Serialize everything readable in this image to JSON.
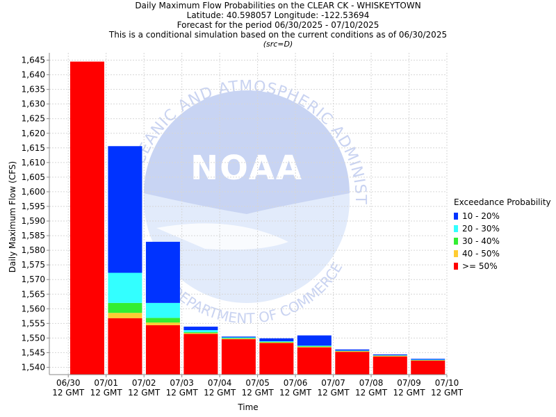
{
  "title_lines": [
    "Daily Maximum Flow Probabilities on the CLEAR CK - WHISKEYTOWN",
    "Latitude: 40.598057 Longitude: -122.53694",
    "Forecast for the period 06/30/2025 - 07/10/2025",
    "This is a conditional simulation based on the current conditions as of 06/30/2025"
  ],
  "src_note": "(src=D)",
  "watermark": {
    "logo_text": "NOAA",
    "ring_top": "NATIONAL OCEANIC AND ATMOSPHERIC ADMINISTRATION",
    "ring_bottom": "U.S. DEPARTMENT OF COMMERCE"
  },
  "legend": {
    "title": "Exceedance Probability",
    "items": [
      {
        "label": "10 - 20%",
        "color": "#0033ff"
      },
      {
        "label": "20 - 30%",
        "color": "#33ffff"
      },
      {
        "label": "30 - 40%",
        "color": "#33ee33"
      },
      {
        "label": "40 - 50%",
        "color": "#ffcc33"
      },
      {
        "label": ">= 50%",
        "color": "#ff0000"
      }
    ]
  },
  "chart_data": {
    "type": "bar",
    "stacked": true,
    "xlabel": "Time",
    "ylabel": "Daily Maximum Flow (CFS)",
    "ylim": [
      1537.5,
      1647.5
    ],
    "yticks": [
      1540,
      1545,
      1550,
      1555,
      1560,
      1565,
      1570,
      1575,
      1580,
      1585,
      1590,
      1595,
      1600,
      1605,
      1610,
      1615,
      1620,
      1625,
      1630,
      1635,
      1640,
      1645
    ],
    "grid": true,
    "legend_position": "right",
    "x_tick_labels": [
      [
        "06/30",
        "12 GMT"
      ],
      [
        "07/01",
        "12 GMT"
      ],
      [
        "07/02",
        "12 GMT"
      ],
      [
        "07/03",
        "12 GMT"
      ],
      [
        "07/04",
        "12 GMT"
      ],
      [
        "07/05",
        "12 GMT"
      ],
      [
        "07/06",
        "12 GMT"
      ],
      [
        "07/07",
        "12 GMT"
      ],
      [
        "07/08",
        "12 GMT"
      ],
      [
        "07/09",
        "12 GMT"
      ],
      [
        "07/10",
        "12 GMT"
      ]
    ],
    "bars": [
      {
        "date": "07/01",
        "segments": [
          1644.5
        ]
      },
      {
        "date": "07/02",
        "segments": [
          1556.8,
          1558.6,
          1562.0,
          1572.3,
          1615.6
        ]
      },
      {
        "date": "07/03",
        "segments": [
          1554.4,
          1555.3,
          1556.9,
          1562.0,
          1582.9
        ]
      },
      {
        "date": "07/04",
        "segments": [
          1551.4,
          1551.7,
          1552.0,
          1552.7,
          1553.9
        ]
      },
      {
        "date": "07/05",
        "segments": [
          1549.6,
          1549.8,
          1550.0,
          1550.2,
          1550.5
        ]
      },
      {
        "date": "07/06",
        "segments": [
          1548.3,
          1548.5,
          1548.7,
          1548.9,
          1549.9
        ]
      },
      {
        "date": "07/07",
        "segments": [
          1546.8,
          1547.0,
          1547.2,
          1547.4,
          1550.9
        ]
      },
      {
        "date": "07/08",
        "segments": [
          1545.3,
          1545.5,
          1545.6,
          1545.7,
          1546.1
        ]
      },
      {
        "date": "07/09",
        "segments": [
          1543.7,
          1543.9,
          1544.0,
          1544.1,
          1544.4
        ]
      },
      {
        "date": "07/10",
        "segments": [
          1542.3,
          1542.4,
          1542.5,
          1542.6,
          1542.9
        ]
      }
    ],
    "segment_colors": [
      "#ff0000",
      "#ffcc33",
      "#33ee33",
      "#33ffff",
      "#0033ff"
    ]
  }
}
